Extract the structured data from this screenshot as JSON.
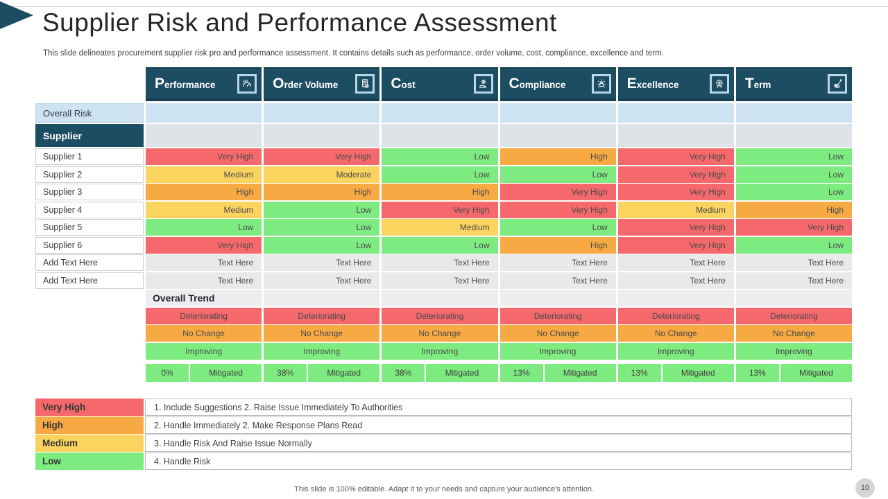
{
  "slide": {
    "title": "Supplier Risk and Performance Assessment",
    "subtitle": "This slide delineates procurement supplier risk pro and performance assessment. It contains details such as performance, order volume, cost, compliance, excellence and term.",
    "footer": "This slide is 100% editable. Adapt it to your needs and capture your audience's attention.",
    "page_number": "10"
  },
  "colors": {
    "teal": "#1d4d63",
    "red": "#f5696d",
    "orange": "#f7a943",
    "yellow": "#fbd45f",
    "green": "#7deb80",
    "light_blue": "#cde3f1",
    "supplier_row_gray": "#dfe2e7",
    "text_row_gray": "#e8e9eb",
    "trend_bar_gray": "#ededef"
  },
  "table": {
    "columns": [
      {
        "label": "Performance",
        "icon": "gauge-icon"
      },
      {
        "label": "Order Volume",
        "icon": "receipt-icon"
      },
      {
        "label": "Cost",
        "icon": "hand-money-icon"
      },
      {
        "label": "Compliance",
        "icon": "compliance-lock-icon"
      },
      {
        "label": "Excellence",
        "icon": "medal-icon"
      },
      {
        "label": "Term",
        "icon": "term-money-icon"
      }
    ],
    "overall_risk_label": "Overall Risk",
    "supplier_label": "Supplier",
    "rows": [
      {
        "name": "Supplier 1",
        "values": [
          {
            "text": "Very High",
            "level": "red"
          },
          {
            "text": "Very High",
            "level": "red"
          },
          {
            "text": "Low",
            "level": "green"
          },
          {
            "text": "High",
            "level": "orange"
          },
          {
            "text": "Very High",
            "level": "red"
          },
          {
            "text": "Low",
            "level": "green"
          }
        ]
      },
      {
        "name": "Supplier 2",
        "values": [
          {
            "text": "Medium",
            "level": "yellow"
          },
          {
            "text": "Moderate",
            "level": "yellow"
          },
          {
            "text": "Low",
            "level": "green"
          },
          {
            "text": "Low",
            "level": "green"
          },
          {
            "text": "Very High",
            "level": "red"
          },
          {
            "text": "Low",
            "level": "green"
          }
        ]
      },
      {
        "name": "Supplier 3",
        "values": [
          {
            "text": "High",
            "level": "orange"
          },
          {
            "text": "High",
            "level": "orange"
          },
          {
            "text": "High",
            "level": "orange"
          },
          {
            "text": "Very High",
            "level": "red"
          },
          {
            "text": "Very High",
            "level": "red"
          },
          {
            "text": "Low",
            "level": "green"
          }
        ]
      },
      {
        "name": "Supplier 4",
        "values": [
          {
            "text": "Medium",
            "level": "yellow"
          },
          {
            "text": "Low",
            "level": "green"
          },
          {
            "text": "Very High",
            "level": "red"
          },
          {
            "text": "Very High",
            "level": "red"
          },
          {
            "text": "Medium",
            "level": "yellow"
          },
          {
            "text": "High",
            "level": "orange"
          }
        ]
      },
      {
        "name": "Supplier 5",
        "values": [
          {
            "text": "Low",
            "level": "green"
          },
          {
            "text": "Low",
            "level": "green"
          },
          {
            "text": "Medium",
            "level": "yellow"
          },
          {
            "text": "Low",
            "level": "green"
          },
          {
            "text": "Very High",
            "level": "red"
          },
          {
            "text": "Very High",
            "level": "red"
          }
        ]
      },
      {
        "name": "Supplier 6",
        "values": [
          {
            "text": "Very High",
            "level": "red"
          },
          {
            "text": "Low",
            "level": "green"
          },
          {
            "text": "Low",
            "level": "green"
          },
          {
            "text": "High",
            "level": "orange"
          },
          {
            "text": "Very High",
            "level": "red"
          },
          {
            "text": "Low",
            "level": "green"
          }
        ]
      }
    ],
    "text_rows": [
      {
        "name": "Add Text Here",
        "values": [
          "Text Here",
          "Text Here",
          "Text Here",
          "Text Here",
          "Text Here",
          "Text Here"
        ]
      },
      {
        "name": "Add Text Here",
        "values": [
          "Text Here",
          "Text Here",
          "Text Here",
          "Text Here",
          "Text Here",
          "Text Here"
        ]
      }
    ],
    "overall_trend_label": "Overall Trend",
    "trend_rows": [
      {
        "label": "Deteriorating",
        "level": "red"
      },
      {
        "label": "No Change",
        "level": "orange"
      },
      {
        "label": "Improving",
        "level": "green"
      }
    ],
    "mitigated": {
      "percents": [
        "0%",
        "38%",
        "38%",
        "13%",
        "13%",
        "13%"
      ],
      "label": "Mitigated"
    }
  },
  "legend": [
    {
      "label": "Very High",
      "level": "red",
      "text": "1. Include Suggestions 2. Raise Issue Immediately To Authorities"
    },
    {
      "label": "High",
      "level": "orange",
      "text": "2. Handle Immediately 2. Make Response Plans Read"
    },
    {
      "label": "Medium",
      "level": "yellow",
      "text": "3. Handle Risk And Raise Issue Normally"
    },
    {
      "label": "Low",
      "level": "green",
      "text": "4. Handle Risk"
    }
  ]
}
